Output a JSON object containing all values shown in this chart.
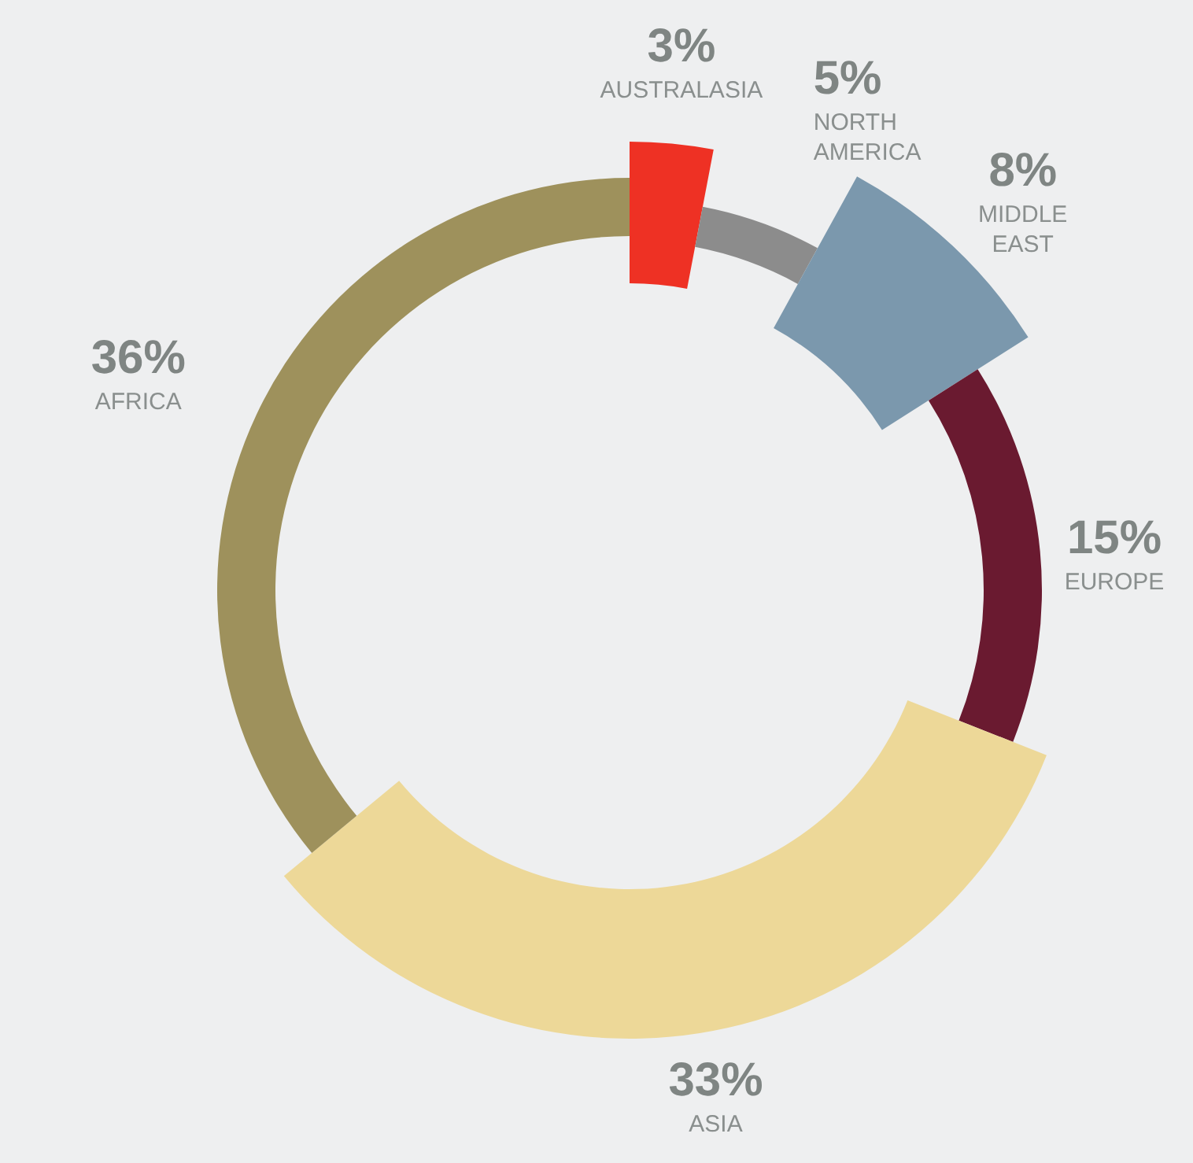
{
  "chart_data": {
    "type": "donut",
    "categories": [
      "AUSTRALASIA",
      "NORTH AMERICA",
      "MIDDLE EAST",
      "EUROPE",
      "ASIA",
      "AFRICA"
    ],
    "values": [
      3,
      5,
      8,
      15,
      33,
      36
    ],
    "value_labels": [
      "3%",
      "5%",
      "8%",
      "15%",
      "33%",
      "36%"
    ],
    "colors": [
      "#ee3124",
      "#8c8c8c",
      "#7b98ad",
      "#6a1a30",
      "#edd898",
      "#9e915c"
    ]
  }
}
